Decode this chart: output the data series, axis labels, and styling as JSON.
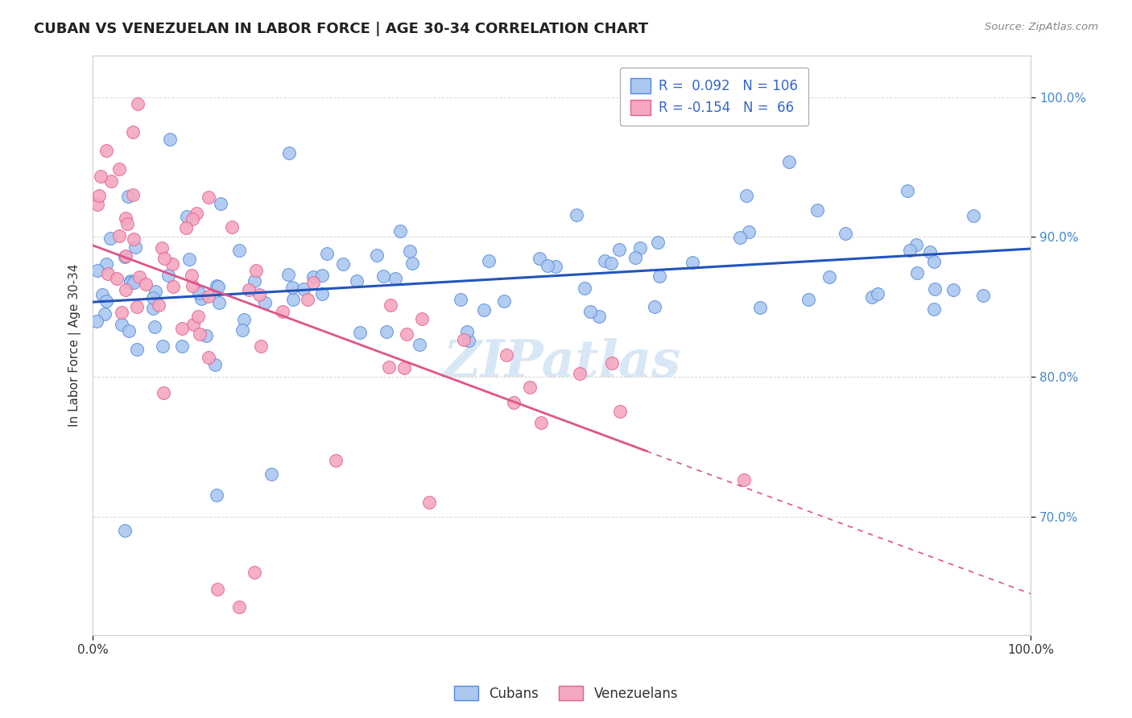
{
  "title": "CUBAN VS VENEZUELAN IN LABOR FORCE | AGE 30-34 CORRELATION CHART",
  "source": "Source: ZipAtlas.com",
  "ylabel": "In Labor Force | Age 30-34",
  "cuban_color": "#aac8f0",
  "cuban_edge_color": "#5588dd",
  "venezuelan_color": "#f5a8c0",
  "venezuelan_edge_color": "#e06090",
  "cuban_line_color": "#2255bb",
  "venezuelan_line_color": "#dd5588",
  "watermark": "ZIPatlas",
  "background_color": "#ffffff",
  "grid_color": "#cccccc",
  "title_color": "#222222",
  "source_color": "#888888",
  "ytick_color": "#4488cc",
  "xtick_color": "#333333",
  "ylabel_color": "#333333",
  "legend_text_color": "#3366cc",
  "legend_label_color": "#333333",
  "xlim": [
    0.0,
    1.0
  ],
  "ylim": [
    0.615,
    1.03
  ],
  "yticks": [
    0.7,
    0.8,
    0.9,
    1.0
  ],
  "ytick_labels": [
    "70.0%",
    "80.0%",
    "90.0%",
    "100.0%"
  ],
  "xtick_labels": [
    "0.0%",
    "100.0%"
  ],
  "xticks": [
    0.0,
    1.0
  ]
}
